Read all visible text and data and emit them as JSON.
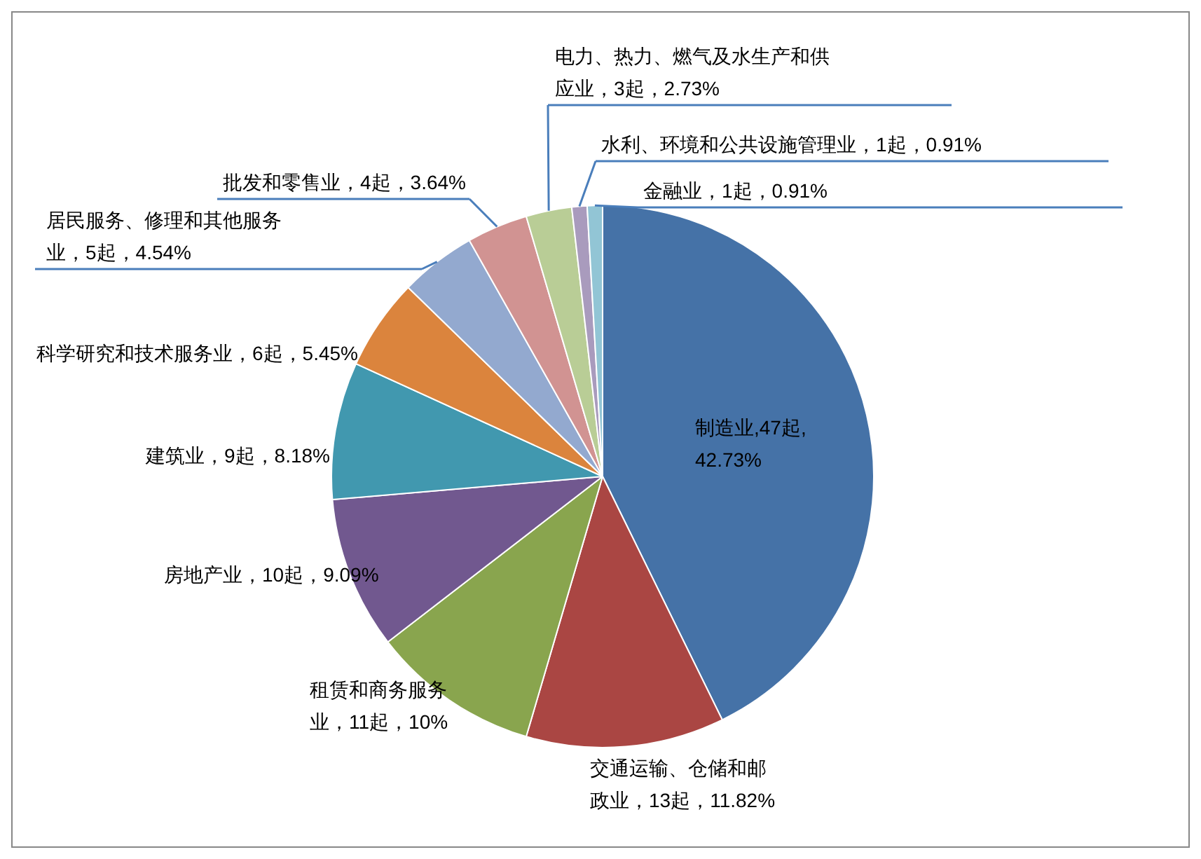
{
  "chart_data": {
    "type": "pie",
    "categories": [
      "制造业,47起,42.73%",
      "交通运输、仓储和邮政业，13起，11.82%",
      "租赁和商务服务业，11起，10%",
      "房地产业，10起，9.09%",
      "建筑业，9起，8.18%",
      "科学研究和技术服务业，6起，5.45%",
      "居民服务、修理和其他服务业，5起，4.54%",
      "批发和零售业，4起，3.64%",
      "电力、热力、燃气及水生产和供应业，3起，2.73%",
      "水利、环境和公共设施管理业，1起，0.91%",
      "金融业，1起，0.91%"
    ],
    "values": [
      47,
      13,
      11,
      10,
      9,
      6,
      5,
      4,
      3,
      1,
      1
    ],
    "colors": [
      "#4572a7",
      "#aa4643",
      "#89a54e",
      "#71588f",
      "#4198af",
      "#db843d",
      "#93a9cf",
      "#d19392",
      "#b9cd96",
      "#a99bbd",
      "#92c5d5"
    ]
  }
}
